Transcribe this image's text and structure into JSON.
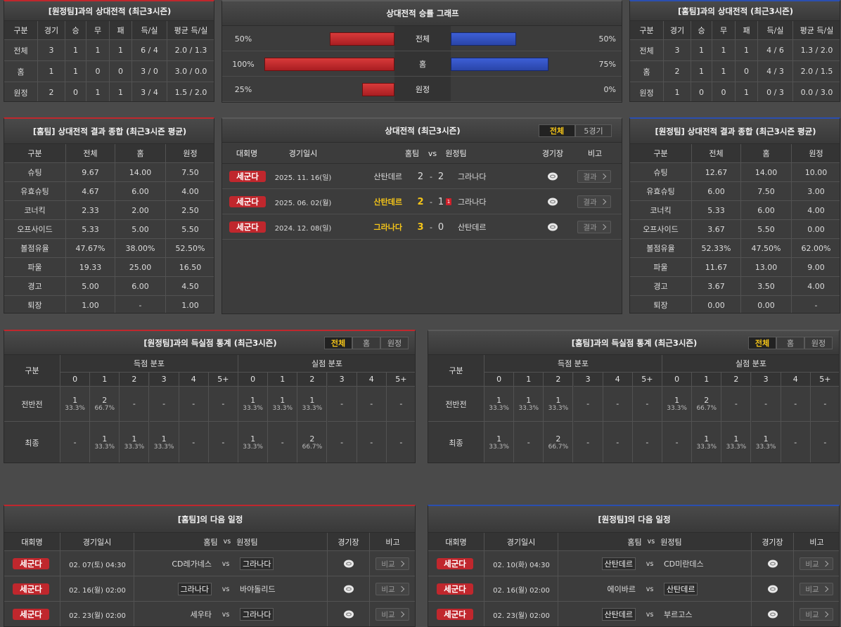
{
  "h2h_away": {
    "title": "[원정팀]과의 상대전적 (최근3시즌)",
    "headers": [
      "구분",
      "경기",
      "승",
      "무",
      "패",
      "득/실",
      "평균 득/실"
    ],
    "rows": [
      [
        "전체",
        "3",
        "1",
        "1",
        "1",
        "6 / 4",
        "2.0 / 1.3"
      ],
      [
        "홈",
        "1",
        "1",
        "0",
        "0",
        "3 / 0",
        "3.0 / 0.0"
      ],
      [
        "원정",
        "2",
        "0",
        "1",
        "1",
        "3 / 4",
        "1.5 / 2.0"
      ]
    ]
  },
  "win_graph": {
    "title": "상대전적 승률 그래프",
    "rows": [
      {
        "left": {
          "value": 50,
          "label": "50%"
        },
        "label": "전체",
        "right": {
          "value": 50,
          "label": "50%"
        }
      },
      {
        "left": {
          "value": 100,
          "label": "100%"
        },
        "label": "홈",
        "right": {
          "value": 75,
          "label": "75%"
        }
      },
      {
        "left": {
          "value": 25,
          "label": "25%"
        },
        "label": "원정",
        "right": {
          "value": 0,
          "label": "0%"
        }
      }
    ]
  },
  "h2h_home": {
    "title": "[홈팀]과의 상대전적 (최근3시즌)",
    "headers": [
      "구분",
      "경기",
      "승",
      "무",
      "패",
      "득/실",
      "평균 득/실"
    ],
    "rows": [
      [
        "전체",
        "3",
        "1",
        "1",
        "1",
        "4 / 6",
        "1.3 / 2.0"
      ],
      [
        "홈",
        "2",
        "1",
        "1",
        "0",
        "4 / 3",
        "2.0 / 1.5"
      ],
      [
        "원정",
        "1",
        "0",
        "0",
        "1",
        "0 / 3",
        "0.0 / 3.0"
      ]
    ]
  },
  "summary_home": {
    "title": "[홈팀] 상대전적 결과 종합 (최근3시즌 평균)",
    "headers": [
      "구분",
      "전체",
      "홈",
      "원정"
    ],
    "rows": [
      [
        "슈팅",
        "9.67",
        "14.00",
        "7.50"
      ],
      [
        "유효슈팅",
        "4.67",
        "6.00",
        "4.00"
      ],
      [
        "코너킥",
        "2.33",
        "2.00",
        "2.50"
      ],
      [
        "오프사이드",
        "5.33",
        "5.00",
        "5.50"
      ],
      [
        "볼점유율",
        "47.67%",
        "38.00%",
        "52.50%"
      ],
      [
        "파울",
        "19.33",
        "25.00",
        "16.50"
      ],
      [
        "경고",
        "5.00",
        "6.00",
        "4.50"
      ],
      [
        "퇴장",
        "1.00",
        "-",
        "1.00"
      ]
    ]
  },
  "recent_matches": {
    "title": "상대전적 (최근3시즌)",
    "tabs": [
      "전체",
      "5경기"
    ],
    "active_tab": 0,
    "headers": [
      "대회명",
      "경기일시",
      "홈팀",
      "vs",
      "원정팀",
      "경기장",
      "비고"
    ],
    "score_separator": "-",
    "rows": [
      {
        "league": "세군다",
        "date": "2025. 11. 16(일)",
        "home": "산탄데르",
        "home_score": "2",
        "away_score": "2",
        "away": "그라나다",
        "note": "결과"
      },
      {
        "league": "세군다",
        "date": "2025. 06. 02(월)",
        "home": "산탄데르",
        "home_score": "2",
        "away_score": "1",
        "away_red_cards": "1",
        "away": "그라나다",
        "note": "결과",
        "winner": "home"
      },
      {
        "league": "세군다",
        "date": "2024. 12. 08(일)",
        "home": "그라나다",
        "home_score": "3",
        "away_score": "0",
        "away": "산탄데르",
        "note": "결과",
        "winner": "home"
      }
    ]
  },
  "summary_away": {
    "title": "[원정팀] 상대전적 결과 종합 (최근3시즌 평균)",
    "headers": [
      "구분",
      "전체",
      "홈",
      "원정"
    ],
    "rows": [
      [
        "슈팅",
        "12.67",
        "14.00",
        "10.00"
      ],
      [
        "유효슈팅",
        "6.00",
        "7.50",
        "3.00"
      ],
      [
        "코너킥",
        "5.33",
        "6.00",
        "4.00"
      ],
      [
        "오프사이드",
        "3.67",
        "5.50",
        "0.00"
      ],
      [
        "볼점유율",
        "52.33%",
        "47.50%",
        "62.00%"
      ],
      [
        "파울",
        "11.67",
        "13.00",
        "9.00"
      ],
      [
        "경고",
        "3.67",
        "3.50",
        "4.00"
      ],
      [
        "퇴장",
        "0.00",
        "0.00",
        "-"
      ]
    ]
  },
  "goals_away": {
    "title": "[원정팀]과의 득실점 통계 (최근3시즌)",
    "tabs": [
      "전체",
      "홈",
      "원정"
    ],
    "active_tab": 0,
    "label_header": "구분",
    "groups": [
      "득점 분포",
      "실점 분포"
    ],
    "columns": [
      "0",
      "1",
      "2",
      "3",
      "4",
      "5+"
    ],
    "rows": [
      {
        "label": "전반전",
        "scored": [
          [
            "1",
            "33.3%"
          ],
          [
            "2",
            "66.7%"
          ],
          "-",
          "-",
          "-",
          "-"
        ],
        "conceded": [
          [
            "1",
            "33.3%"
          ],
          [
            "1",
            "33.3%"
          ],
          [
            "1",
            "33.3%"
          ],
          "-",
          "-",
          "-"
        ]
      },
      {
        "label": "최종",
        "scored": [
          "-",
          [
            "1",
            "33.3%"
          ],
          [
            "1",
            "33.3%"
          ],
          [
            "1",
            "33.3%"
          ],
          "-",
          "-"
        ],
        "conceded": [
          [
            "1",
            "33.3%"
          ],
          "-",
          [
            "2",
            "66.7%"
          ],
          "-",
          "-",
          "-"
        ]
      }
    ]
  },
  "goals_home": {
    "title": "[홈팀]과의 득실점 통계 (최근3시즌)",
    "tabs": [
      "전체",
      "홈",
      "원정"
    ],
    "active_tab": 0,
    "label_header": "구분",
    "groups": [
      "득점 분포",
      "실점 분포"
    ],
    "columns": [
      "0",
      "1",
      "2",
      "3",
      "4",
      "5+"
    ],
    "rows": [
      {
        "label": "전반전",
        "scored": [
          [
            "1",
            "33.3%"
          ],
          [
            "1",
            "33.3%"
          ],
          [
            "1",
            "33.3%"
          ],
          "-",
          "-",
          "-"
        ],
        "conceded": [
          [
            "1",
            "33.3%"
          ],
          [
            "2",
            "66.7%"
          ],
          "-",
          "-",
          "-",
          "-"
        ]
      },
      {
        "label": "최종",
        "scored": [
          [
            "1",
            "33.3%"
          ],
          "-",
          [
            "2",
            "66.7%"
          ],
          "-",
          "-",
          "-"
        ],
        "conceded": [
          "-",
          [
            "1",
            "33.3%"
          ],
          [
            "1",
            "33.3%"
          ],
          [
            "1",
            "33.3%"
          ],
          "-",
          "-"
        ]
      }
    ]
  },
  "next_home": {
    "title": "[홈팀]의 다음 일정",
    "headers": [
      "대회명",
      "경기일시",
      "홈팀",
      "vs",
      "원정팀",
      "경기장",
      "비고"
    ],
    "rows": [
      {
        "league": "세군다",
        "date": "02. 07(토) 04:30",
        "home": "CD레가네스",
        "away": "그라나다",
        "highlight": "away",
        "note": "비교"
      },
      {
        "league": "세군다",
        "date": "02. 16(월) 02:00",
        "home": "그라나다",
        "away": "바야돌리드",
        "highlight": "home",
        "note": "비교"
      },
      {
        "league": "세군다",
        "date": "02. 23(월) 02:00",
        "home": "세우타",
        "away": "그라나다",
        "highlight": "away",
        "note": "비교"
      }
    ]
  },
  "next_away": {
    "title": "[원정팀]의 다음 일정",
    "headers": [
      "대회명",
      "경기일시",
      "홈팀",
      "vs",
      "원정팀",
      "경기장",
      "비고"
    ],
    "rows": [
      {
        "league": "세군다",
        "date": "02. 10(화) 04:30",
        "home": "산탄데르",
        "away": "CD미란데스",
        "highlight": "home",
        "note": "비교"
      },
      {
        "league": "세군다",
        "date": "02. 16(월) 02:00",
        "home": "에이바르",
        "away": "산탄데르",
        "highlight": "away",
        "note": "비교"
      },
      {
        "league": "세군다",
        "date": "02. 23(월) 02:00",
        "home": "산탄데르",
        "away": "부르고스",
        "highlight": "home",
        "note": "비교"
      }
    ]
  }
}
